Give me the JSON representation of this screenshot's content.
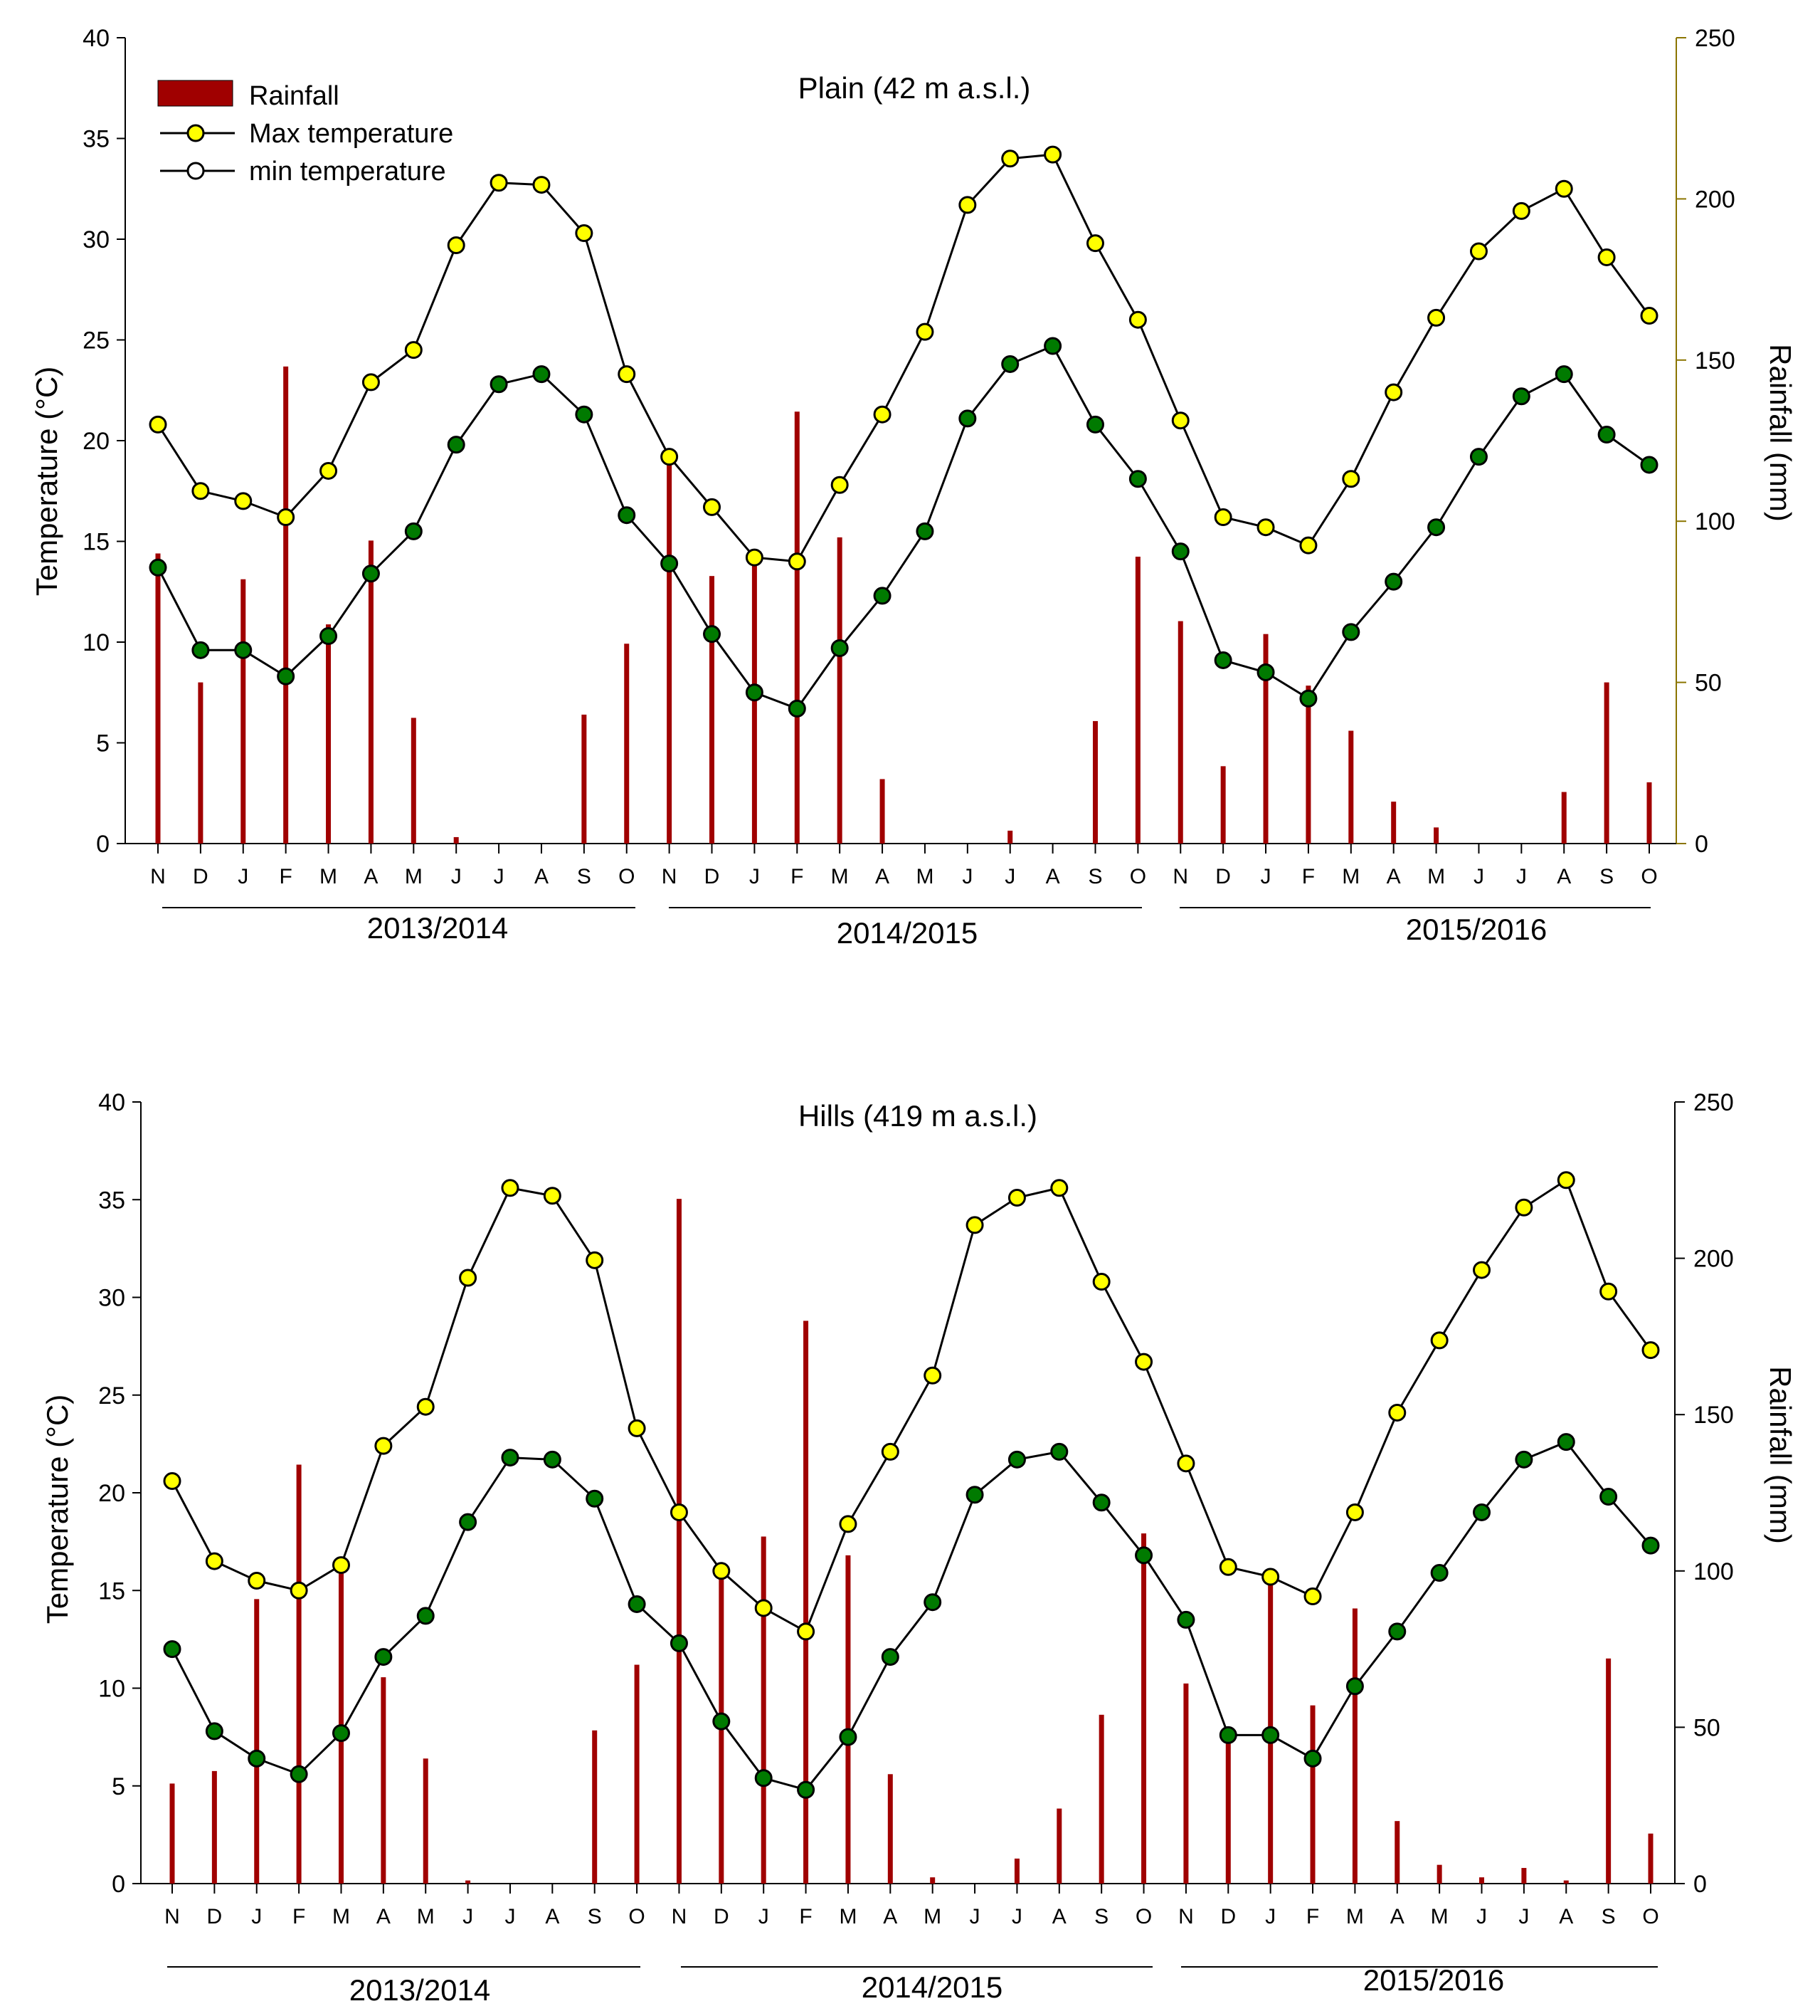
{
  "colors": {
    "rainfall": "#a00000",
    "max_marker": "#ffff00",
    "min_marker": "#007a00",
    "line": "#000000",
    "right_axis_plain": "#8b7500"
  },
  "legend": {
    "rainfall": "Rainfall",
    "max": "Max temperature",
    "min": "min temperature"
  },
  "chart_data": [
    {
      "type": "bar+line",
      "title": "Plain (42 m a.s.l.)",
      "ylabel_left": "Temperature (°C)",
      "ylabel_right": "Rainfall (mm)",
      "ylim_left": [
        0,
        40
      ],
      "ylim_right": [
        0,
        250
      ],
      "yticks_left": [
        0,
        5,
        10,
        15,
        20,
        25,
        30,
        35,
        40
      ],
      "yticks_right": [
        0,
        50,
        100,
        150,
        200,
        250
      ],
      "categories": [
        "N",
        "D",
        "J",
        "F",
        "M",
        "A",
        "M",
        "J",
        "J",
        "A",
        "S",
        "O",
        "N",
        "D",
        "J",
        "F",
        "M",
        "A",
        "M",
        "J",
        "J",
        "A",
        "S",
        "O",
        "N",
        "D",
        "J",
        "F",
        "M",
        "A",
        "M",
        "J",
        "J",
        "A",
        "S",
        "O"
      ],
      "seasons": [
        "2013/2014",
        "2014/2015",
        "2015/2016"
      ],
      "series": [
        {
          "name": "Rainfall",
          "kind": "bar",
          "axis": "right",
          "values": [
            90,
            50,
            82,
            148,
            68,
            94,
            39,
            2,
            0,
            0,
            40,
            62,
            120,
            83,
            90,
            134,
            95,
            20,
            0,
            0,
            4,
            0,
            38,
            89,
            69,
            24,
            65,
            49,
            35,
            13,
            5,
            0,
            0,
            16,
            50,
            19
          ]
        },
        {
          "name": "Max temperature",
          "kind": "line",
          "axis": "left",
          "values": [
            20.8,
            17.5,
            17.0,
            16.2,
            18.5,
            22.9,
            24.5,
            29.7,
            32.8,
            32.7,
            30.3,
            23.3,
            19.2,
            16.7,
            14.2,
            14.0,
            17.8,
            21.3,
            25.4,
            31.7,
            34.0,
            34.2,
            29.8,
            26.0,
            21.0,
            16.2,
            15.7,
            14.8,
            18.1,
            22.4,
            26.1,
            29.4,
            31.4,
            32.5,
            29.1,
            26.2
          ]
        },
        {
          "name": "min temperature",
          "kind": "line",
          "axis": "left",
          "values": [
            13.7,
            9.6,
            9.6,
            8.3,
            10.3,
            13.4,
            15.5,
            19.8,
            22.8,
            23.3,
            21.3,
            16.3,
            13.9,
            10.4,
            7.5,
            6.7,
            9.7,
            12.3,
            15.5,
            21.1,
            23.8,
            24.7,
            20.8,
            18.1,
            14.5,
            9.1,
            8.5,
            7.2,
            10.5,
            13.0,
            15.7,
            19.2,
            22.2,
            23.3,
            20.3,
            18.8
          ]
        }
      ]
    },
    {
      "type": "bar+line",
      "title": "Hills (419 m a.s.l.)",
      "ylabel_left": "Temperature (°C)",
      "ylabel_right": "Rainfall (mm)",
      "ylim_left": [
        0,
        40
      ],
      "ylim_right": [
        0,
        250
      ],
      "yticks_left": [
        0,
        5,
        10,
        15,
        20,
        25,
        30,
        35,
        40
      ],
      "yticks_right": [
        0,
        50,
        100,
        150,
        200,
        250
      ],
      "categories": [
        "N",
        "D",
        "J",
        "F",
        "M",
        "A",
        "M",
        "J",
        "J",
        "A",
        "S",
        "O",
        "N",
        "D",
        "J",
        "F",
        "M",
        "A",
        "M",
        "J",
        "J",
        "A",
        "S",
        "O",
        "N",
        "D",
        "J",
        "F",
        "M",
        "A",
        "M",
        "J",
        "J",
        "A",
        "S",
        "O"
      ],
      "seasons": [
        "2013/2014",
        "2014/2015",
        "2015/2016"
      ],
      "series": [
        {
          "name": "Rainfall",
          "kind": "bar",
          "axis": "right",
          "values": [
            32,
            36,
            91,
            134,
            100,
            66,
            40,
            1,
            0,
            0,
            49,
            70,
            219,
            100,
            111,
            180,
            105,
            35,
            2,
            0,
            8,
            24,
            54,
            112,
            64,
            50,
            98,
            57,
            88,
            20,
            6,
            2,
            5,
            1,
            72,
            16
          ]
        },
        {
          "name": "Max temperature",
          "kind": "line",
          "axis": "left",
          "values": [
            20.6,
            16.5,
            15.5,
            15.0,
            16.3,
            22.4,
            24.4,
            31.0,
            35.6,
            35.2,
            31.9,
            23.3,
            19.0,
            16.0,
            14.1,
            12.9,
            18.4,
            22.1,
            26.0,
            33.7,
            35.1,
            35.6,
            30.8,
            26.7,
            21.5,
            16.2,
            15.7,
            14.7,
            19.0,
            24.1,
            27.8,
            31.4,
            34.6,
            36.0,
            30.3,
            27.3
          ]
        },
        {
          "name": "min temperature",
          "kind": "line",
          "axis": "left",
          "values": [
            12.0,
            7.8,
            6.4,
            5.6,
            7.7,
            11.6,
            13.7,
            18.5,
            21.8,
            21.7,
            19.7,
            14.3,
            12.3,
            8.3,
            5.4,
            4.8,
            7.5,
            11.6,
            14.4,
            19.9,
            21.7,
            22.1,
            19.5,
            16.8,
            13.5,
            7.6,
            7.6,
            6.4,
            10.1,
            12.9,
            15.9,
            19.0,
            21.7,
            22.6,
            19.8,
            17.3
          ]
        }
      ]
    }
  ]
}
